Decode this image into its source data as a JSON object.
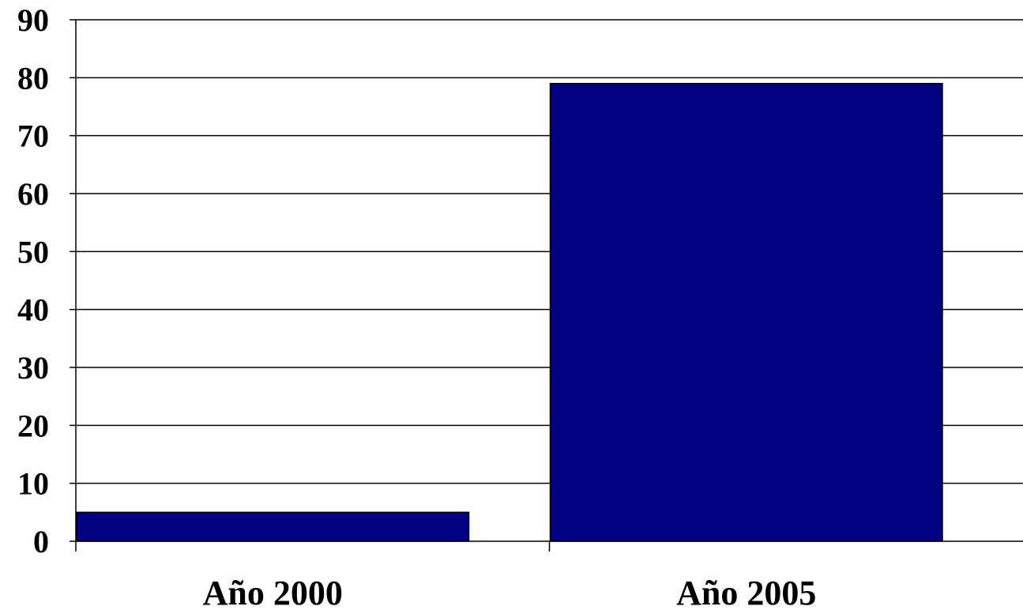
{
  "chart_data": {
    "type": "bar",
    "title": "",
    "xlabel": "",
    "ylabel": "",
    "categories": [
      "Año 2000",
      "Año 2005"
    ],
    "values": [
      5,
      79
    ],
    "ylim": [
      0,
      90
    ],
    "yticks": [
      0,
      10,
      20,
      30,
      40,
      50,
      60,
      70,
      80,
      90
    ],
    "grid": true,
    "legend": "none",
    "bar_color": "#000080",
    "bar_edge_color": "#000000",
    "gridline_color": "#000000"
  }
}
